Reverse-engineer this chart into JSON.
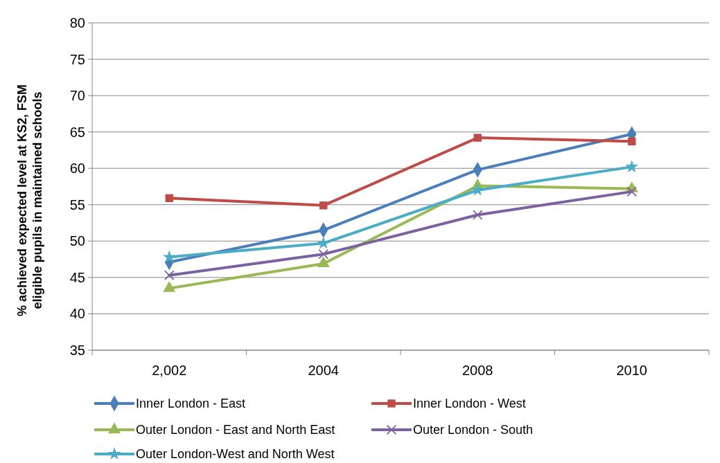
{
  "chart_data": {
    "type": "line",
    "ylabel": "% achieved expected level at KS2, FSM eligible pupils in maintained schools",
    "categories": [
      "2,002",
      "2004",
      "2008",
      "2010"
    ],
    "series": [
      {
        "name": "Inner London - East",
        "color": "#4a7ebb",
        "marker": "diamond",
        "values": [
          47.1,
          51.5,
          59.8,
          64.7
        ]
      },
      {
        "name": "Inner London - West",
        "color": "#be4b48",
        "marker": "square",
        "values": [
          55.9,
          54.9,
          64.2,
          63.7
        ]
      },
      {
        "name": "Outer London - East and North East",
        "color": "#98b954",
        "marker": "triangle",
        "values": [
          43.5,
          46.9,
          57.6,
          57.2
        ]
      },
      {
        "name": "Outer London - South",
        "color": "#7d60a0",
        "marker": "cross",
        "values": [
          45.3,
          48.2,
          53.6,
          56.8
        ]
      },
      {
        "name": "Outer London-West and North West",
        "color": "#4bacc6",
        "marker": "star",
        "values": [
          47.8,
          49.7,
          57.0,
          60.2
        ]
      }
    ],
    "ylim": [
      35,
      80
    ],
    "yticks": [
      35,
      40,
      45,
      50,
      55,
      60,
      65,
      70,
      75,
      80
    ],
    "grid": "y",
    "legend": "bottom",
    "line_style": "solid"
  }
}
